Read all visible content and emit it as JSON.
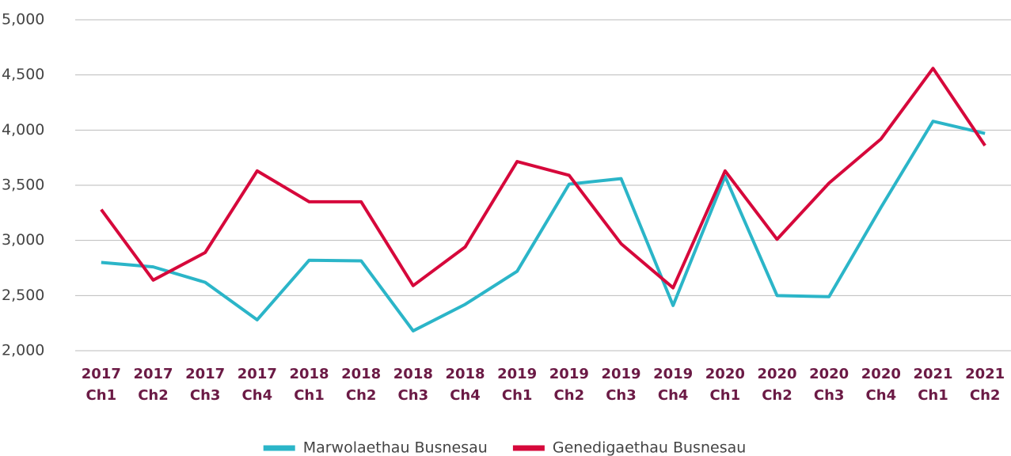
{
  "chart_data": {
    "type": "line",
    "categories": [
      "2017 Ch1",
      "2017 Ch2",
      "2017 Ch3",
      "2017 Ch4",
      "2018 Ch1",
      "2018 Ch2",
      "2018 Ch3",
      "2018 Ch4",
      "2019 Ch1",
      "2019 Ch2",
      "2019 Ch3",
      "2019 Ch4",
      "2020 Ch1",
      "2020 Ch2",
      "2020 Ch3",
      "2020 Ch4",
      "2021 Ch1",
      "2021 Ch2"
    ],
    "series": [
      {
        "name": "Marwolaethau Busnesau",
        "color": "#2bb5c8",
        "values": [
          2800,
          2760,
          2620,
          2280,
          2820,
          2815,
          2180,
          2420,
          2720,
          3510,
          3560,
          2410,
          3580,
          2500,
          2490,
          3300,
          4080,
          3970
        ]
      },
      {
        "name": "Genedigaethau Busnesau",
        "color": "#d6083b",
        "values": [
          3280,
          2640,
          2890,
          3630,
          3350,
          3350,
          2590,
          2940,
          3715,
          3590,
          2970,
          2570,
          3630,
          3010,
          3520,
          3920,
          4560,
          3860
        ]
      }
    ],
    "ylim": [
      2000,
      5000
    ],
    "yticks": [
      {
        "value": 2000,
        "label": "2,000"
      },
      {
        "value": 2500,
        "label": "2,500"
      },
      {
        "value": 3000,
        "label": "3,000"
      },
      {
        "value": 3500,
        "label": "3,500"
      },
      {
        "value": 4000,
        "label": "4,000"
      },
      {
        "value": 4500,
        "label": "4,500"
      },
      {
        "value": 5000,
        "label": "5,000"
      }
    ],
    "grid": true,
    "legend": "bottom"
  }
}
